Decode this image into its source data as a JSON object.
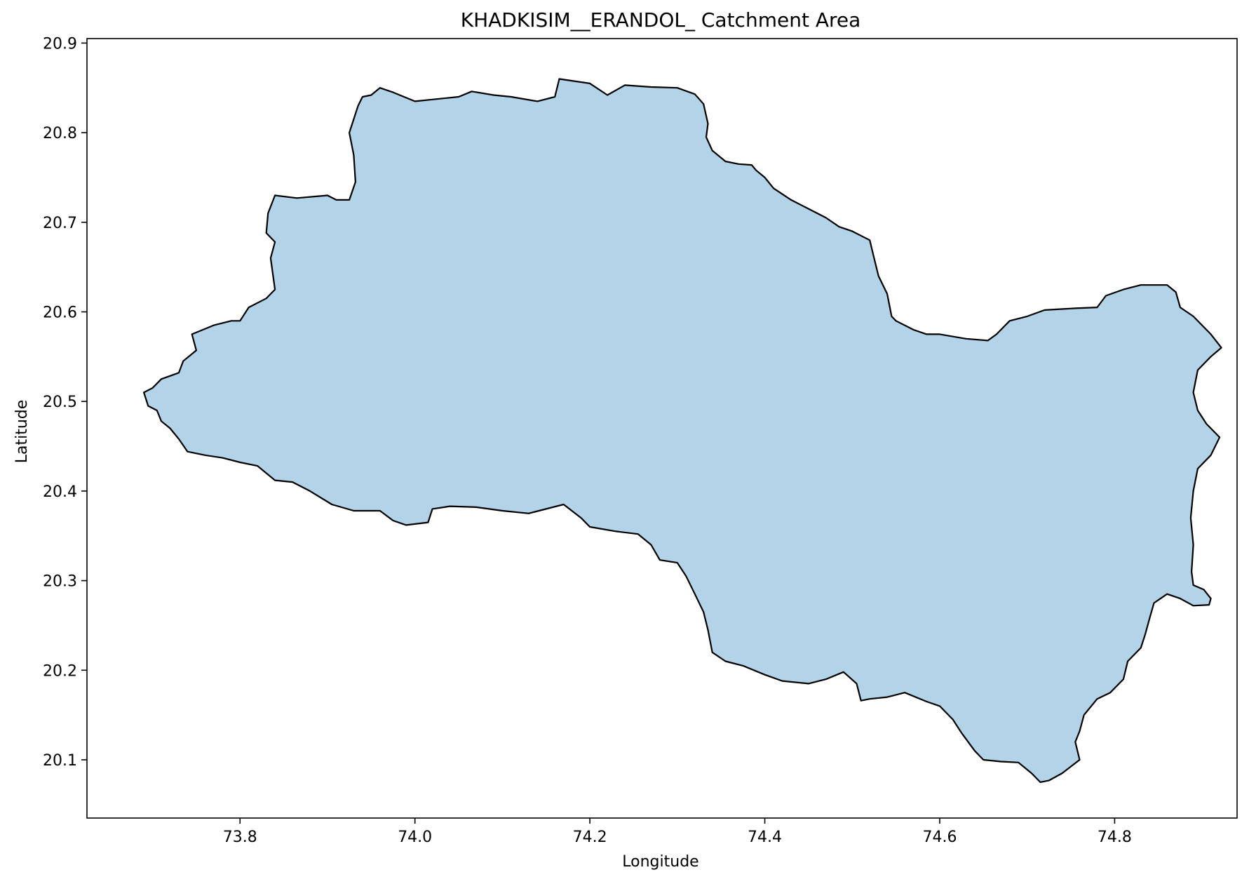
{
  "chart": {
    "title": "KHADKISIM__ERANDOL_ Catchment Area",
    "xlabel": "Longitude",
    "ylabel": "Latitude"
  },
  "colors": {
    "fill": "#b3d3e8",
    "outline": "#000000",
    "axes": "#000000"
  },
  "chart_data": {
    "type": "area",
    "title": "KHADKISIM__ERANDOL_ Catchment Area",
    "xlabel": "Longitude",
    "ylabel": "Latitude",
    "xlim": [
      73.625,
      74.94
    ],
    "ylim": [
      20.035,
      20.905
    ],
    "x_ticks": [
      73.8,
      74.0,
      74.2,
      74.4,
      74.6,
      74.8
    ],
    "x_tick_labels": [
      "73.8",
      "74.0",
      "74.2",
      "74.4",
      "74.6",
      "74.8"
    ],
    "y_ticks": [
      20.1,
      20.2,
      20.3,
      20.4,
      20.5,
      20.6,
      20.7,
      20.8,
      20.9
    ],
    "y_tick_labels": [
      "20.1",
      "20.2",
      "20.3",
      "20.4",
      "20.5",
      "20.6",
      "20.7",
      "20.8",
      "20.9"
    ],
    "grid": false,
    "polygon": [
      [
        73.69,
        20.51
      ],
      [
        73.7,
        20.515
      ],
      [
        73.71,
        20.525
      ],
      [
        73.73,
        20.532
      ],
      [
        73.735,
        20.545
      ],
      [
        73.75,
        20.557
      ],
      [
        73.745,
        20.575
      ],
      [
        73.77,
        20.585
      ],
      [
        73.79,
        20.59
      ],
      [
        73.8,
        20.59
      ],
      [
        73.81,
        20.605
      ],
      [
        73.83,
        20.615
      ],
      [
        73.84,
        20.625
      ],
      [
        73.835,
        20.66
      ],
      [
        73.84,
        20.678
      ],
      [
        73.83,
        20.688
      ],
      [
        73.832,
        20.71
      ],
      [
        73.84,
        20.73
      ],
      [
        73.865,
        20.727
      ],
      [
        73.9,
        20.73
      ],
      [
        73.91,
        20.725
      ],
      [
        73.925,
        20.725
      ],
      [
        73.932,
        20.745
      ],
      [
        73.93,
        20.775
      ],
      [
        73.925,
        20.8
      ],
      [
        73.935,
        20.83
      ],
      [
        73.94,
        20.84
      ],
      [
        73.95,
        20.842
      ],
      [
        73.96,
        20.85
      ],
      [
        73.975,
        20.845
      ],
      [
        74.0,
        20.835
      ],
      [
        74.02,
        20.837
      ],
      [
        74.05,
        20.84
      ],
      [
        74.065,
        20.846
      ],
      [
        74.09,
        20.842
      ],
      [
        74.11,
        20.84
      ],
      [
        74.14,
        20.835
      ],
      [
        74.16,
        20.84
      ],
      [
        74.165,
        20.86
      ],
      [
        74.2,
        20.855
      ],
      [
        74.22,
        20.842
      ],
      [
        74.24,
        20.853
      ],
      [
        74.27,
        20.851
      ],
      [
        74.3,
        20.85
      ],
      [
        74.32,
        20.843
      ],
      [
        74.33,
        20.832
      ],
      [
        74.335,
        20.81
      ],
      [
        74.333,
        20.795
      ],
      [
        74.34,
        20.78
      ],
      [
        74.355,
        20.768
      ],
      [
        74.37,
        20.765
      ],
      [
        74.385,
        20.764
      ],
      [
        74.39,
        20.758
      ],
      [
        74.4,
        20.75
      ],
      [
        74.41,
        20.738
      ],
      [
        74.43,
        20.725
      ],
      [
        74.45,
        20.715
      ],
      [
        74.47,
        20.705
      ],
      [
        74.485,
        20.695
      ],
      [
        74.5,
        20.69
      ],
      [
        74.52,
        20.68
      ],
      [
        74.525,
        20.66
      ],
      [
        74.53,
        20.64
      ],
      [
        74.54,
        20.62
      ],
      [
        74.545,
        20.595
      ],
      [
        74.55,
        20.59
      ],
      [
        74.57,
        20.58
      ],
      [
        74.585,
        20.575
      ],
      [
        74.6,
        20.575
      ],
      [
        74.63,
        20.57
      ],
      [
        74.655,
        20.568
      ],
      [
        74.665,
        20.575
      ],
      [
        74.68,
        20.59
      ],
      [
        74.7,
        20.595
      ],
      [
        74.72,
        20.602
      ],
      [
        74.755,
        20.604
      ],
      [
        74.78,
        20.605
      ],
      [
        74.79,
        20.618
      ],
      [
        74.81,
        20.625
      ],
      [
        74.83,
        20.63
      ],
      [
        74.86,
        20.63
      ],
      [
        74.87,
        20.622
      ],
      [
        74.875,
        20.605
      ],
      [
        74.89,
        20.595
      ],
      [
        74.91,
        20.575
      ],
      [
        74.922,
        20.56
      ],
      [
        74.91,
        20.55
      ],
      [
        74.895,
        20.535
      ],
      [
        74.89,
        20.51
      ],
      [
        74.895,
        20.49
      ],
      [
        74.905,
        20.475
      ],
      [
        74.92,
        20.46
      ],
      [
        74.91,
        20.44
      ],
      [
        74.895,
        20.425
      ],
      [
        74.89,
        20.4
      ],
      [
        74.887,
        20.37
      ],
      [
        74.89,
        20.34
      ],
      [
        74.888,
        20.31
      ],
      [
        74.89,
        20.295
      ],
      [
        74.902,
        20.29
      ],
      [
        74.91,
        20.28
      ],
      [
        74.908,
        20.273
      ],
      [
        74.89,
        20.272
      ],
      [
        74.875,
        20.28
      ],
      [
        74.86,
        20.285
      ],
      [
        74.845,
        20.275
      ],
      [
        74.84,
        20.258
      ],
      [
        74.835,
        20.24
      ],
      [
        74.83,
        20.225
      ],
      [
        74.815,
        20.21
      ],
      [
        74.81,
        20.19
      ],
      [
        74.795,
        20.175
      ],
      [
        74.78,
        20.168
      ],
      [
        74.765,
        20.15
      ],
      [
        74.76,
        20.132
      ],
      [
        74.755,
        20.12
      ],
      [
        74.76,
        20.1
      ],
      [
        74.74,
        20.085
      ],
      [
        74.725,
        20.077
      ],
      [
        74.715,
        20.075
      ],
      [
        74.705,
        20.085
      ],
      [
        74.69,
        20.097
      ],
      [
        74.67,
        20.098
      ],
      [
        74.65,
        20.1
      ],
      [
        74.64,
        20.11
      ],
      [
        74.625,
        20.13
      ],
      [
        74.615,
        20.145
      ],
      [
        74.6,
        20.16
      ],
      [
        74.585,
        20.165
      ],
      [
        74.56,
        20.175
      ],
      [
        74.54,
        20.17
      ],
      [
        74.52,
        20.168
      ],
      [
        74.51,
        20.166
      ],
      [
        74.505,
        20.185
      ],
      [
        74.49,
        20.198
      ],
      [
        74.47,
        20.19
      ],
      [
        74.45,
        20.185
      ],
      [
        74.42,
        20.188
      ],
      [
        74.4,
        20.195
      ],
      [
        74.375,
        20.205
      ],
      [
        74.355,
        20.21
      ],
      [
        74.34,
        20.22
      ],
      [
        74.335,
        20.245
      ],
      [
        74.33,
        20.265
      ],
      [
        74.32,
        20.285
      ],
      [
        74.31,
        20.305
      ],
      [
        74.3,
        20.32
      ],
      [
        74.28,
        20.323
      ],
      [
        74.27,
        20.34
      ],
      [
        74.255,
        20.352
      ],
      [
        74.23,
        20.355
      ],
      [
        74.2,
        20.36
      ],
      [
        74.19,
        20.37
      ],
      [
        74.17,
        20.385
      ],
      [
        74.13,
        20.375
      ],
      [
        74.1,
        20.378
      ],
      [
        74.07,
        20.382
      ],
      [
        74.04,
        20.383
      ],
      [
        74.02,
        20.38
      ],
      [
        74.015,
        20.365
      ],
      [
        73.99,
        20.362
      ],
      [
        73.975,
        20.367
      ],
      [
        73.96,
        20.378
      ],
      [
        73.93,
        20.378
      ],
      [
        73.905,
        20.385
      ],
      [
        73.88,
        20.4
      ],
      [
        73.86,
        20.41
      ],
      [
        73.84,
        20.412
      ],
      [
        73.82,
        20.428
      ],
      [
        73.8,
        20.432
      ],
      [
        73.78,
        20.437
      ],
      [
        73.76,
        20.44
      ],
      [
        73.74,
        20.444
      ],
      [
        73.73,
        20.458
      ],
      [
        73.72,
        20.47
      ],
      [
        73.71,
        20.478
      ],
      [
        73.705,
        20.49
      ],
      [
        73.695,
        20.495
      ],
      [
        73.69,
        20.51
      ]
    ]
  }
}
